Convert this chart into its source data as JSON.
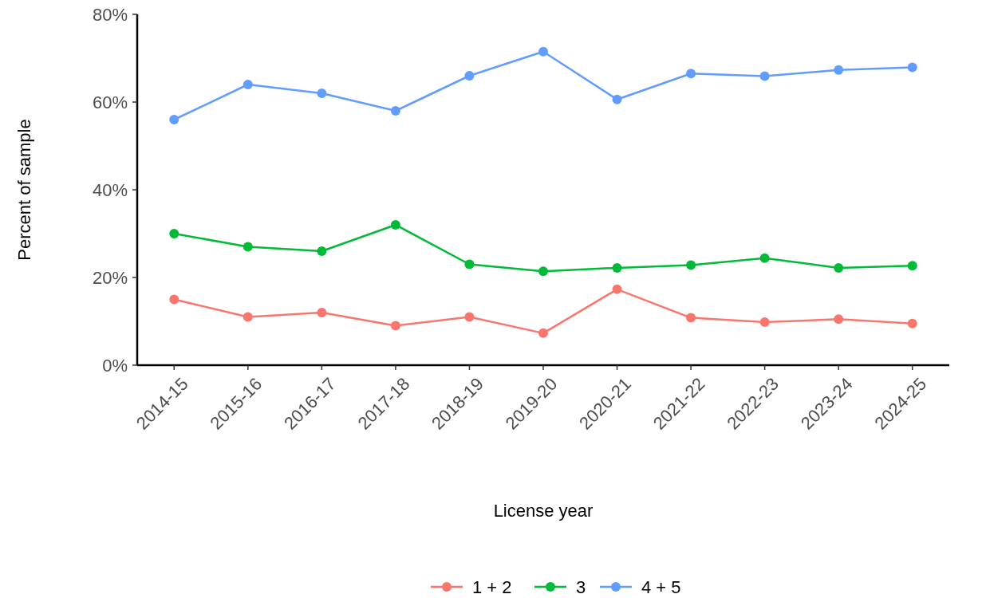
{
  "chart_data": {
    "type": "line",
    "xlabel": "License year",
    "ylabel": "Percent of sample",
    "categories": [
      "2014-15",
      "2015-16",
      "2016-17",
      "2017-18",
      "2018-19",
      "2019-20",
      "2020-21",
      "2021-22",
      "2022-23",
      "2023-24",
      "2024-25"
    ],
    "series": [
      {
        "name": "1 + 2",
        "color": "#f8766d",
        "values": [
          15,
          11,
          12,
          9,
          11,
          7.3,
          17.3,
          10.8,
          9.8,
          10.5,
          9.5
        ]
      },
      {
        "name": "3",
        "color": "#00ba38",
        "values": [
          30,
          27,
          26,
          32,
          23,
          21.4,
          22.2,
          22.8,
          24.4,
          22.2,
          22.7
        ]
      },
      {
        "name": "4 + 5",
        "color": "#619cff",
        "values": [
          56,
          64,
          62,
          58,
          66,
          71.5,
          60.6,
          66.5,
          65.9,
          67.3,
          67.9
        ]
      }
    ],
    "ylim": [
      0,
      80
    ],
    "yticks": [
      {
        "value": 0,
        "label": "0%"
      },
      {
        "value": 20,
        "label": "20%"
      },
      {
        "value": 40,
        "label": "40%"
      },
      {
        "value": 60,
        "label": "60%"
      },
      {
        "value": 80,
        "label": "80%"
      }
    ],
    "grid": false,
    "legend": "bottom",
    "marker": "circle",
    "line_style": "solid"
  }
}
